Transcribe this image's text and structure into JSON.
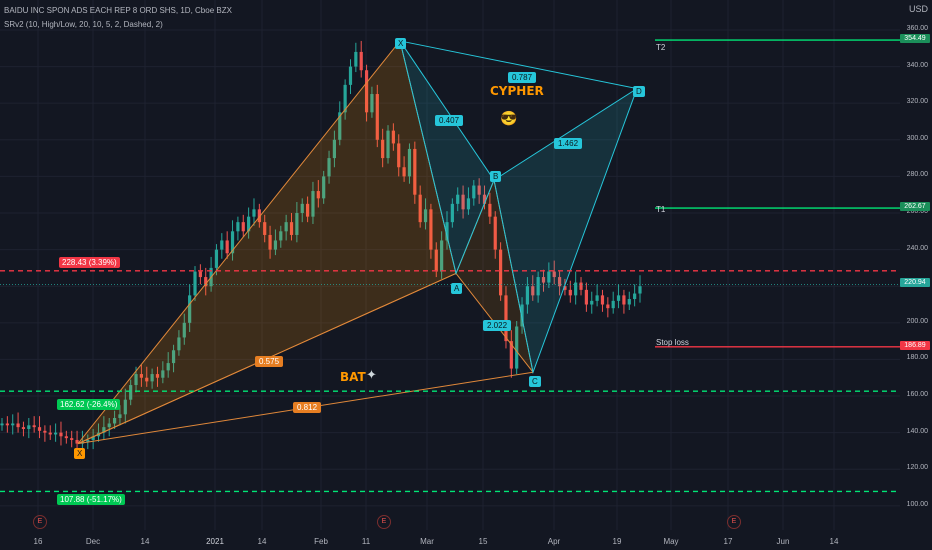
{
  "header": {
    "title": "BAIDU INC SPON ADS EACH REP 8 ORD SHS, 1D, Cboe BZX",
    "indicator": "SRv2 (10, High/Low, 20, 10, 5, 2, Dashed, 2)",
    "currency": "USD"
  },
  "colors": {
    "background": "#131722",
    "up": "#26a69a",
    "down": "#ef5350",
    "cypher": "#26c6da",
    "bat": "#ff9800",
    "green_level": "#00e676",
    "red_level": "#f23645"
  },
  "chart_data": {
    "type": "candlestick",
    "x_ticks": [
      "16",
      "Dec",
      "14",
      "2021",
      "14",
      "Feb",
      "11",
      "Mar",
      "15",
      "Apr",
      "19",
      "May",
      "17",
      "Jun",
      "14"
    ],
    "y_ticks": [
      100,
      120,
      140,
      160,
      180,
      200,
      220,
      240,
      260,
      280,
      300,
      320,
      340,
      360
    ],
    "ylim": [
      95,
      372
    ],
    "current_price": 220.94,
    "closes": [
      145,
      144,
      145,
      143,
      142,
      144,
      143,
      141,
      140,
      139,
      140,
      138,
      137,
      136,
      134,
      135,
      136,
      138,
      140,
      143,
      145,
      148,
      150,
      158,
      166,
      172,
      170,
      168,
      172,
      170,
      174,
      178,
      185,
      192,
      200,
      215,
      228,
      225,
      220,
      230,
      240,
      245,
      238,
      250,
      255,
      250,
      258,
      262,
      255,
      248,
      240,
      245,
      250,
      255,
      248,
      260,
      265,
      258,
      272,
      268,
      280,
      290,
      300,
      315,
      330,
      340,
      348,
      338,
      315,
      325,
      300,
      290,
      305,
      298,
      285,
      280,
      295,
      270,
      255,
      262,
      240,
      228,
      245,
      255,
      265,
      270,
      262,
      268,
      275,
      270,
      265,
      258,
      240,
      215,
      190,
      175,
      198,
      210,
      220,
      215,
      225,
      222,
      228,
      225,
      220,
      218,
      215,
      222,
      218,
      210,
      212,
      215,
      210,
      208,
      212,
      215,
      210,
      213,
      216,
      220
    ],
    "levels": [
      {
        "label": "228.43 (3.39%)",
        "value": 228.43,
        "style": "dashed",
        "color": "#f23645"
      },
      {
        "label": "162.62 (-26.4%)",
        "value": 162.62,
        "style": "dashed",
        "color": "#00e676"
      },
      {
        "label": "107.88 (-51.17%)",
        "value": 107.88,
        "style": "dashed",
        "color": "#00e676"
      }
    ],
    "targets": [
      {
        "label": "T2",
        "value": 354.49,
        "color": "#00e676"
      },
      {
        "label": "T1",
        "value": 262.67,
        "color": "#00e676"
      },
      {
        "label": "Stop loss",
        "value": 186.89,
        "color": "#f23645"
      }
    ],
    "patterns": [
      {
        "name": "CYPHER",
        "points": {
          "X": 354,
          "A": 227,
          "B": 278,
          "C": 173,
          "D": 328
        },
        "ratios": [
          "0.407",
          "0.787",
          "1.462",
          "2.022"
        ]
      },
      {
        "name": "BAT",
        "points": {
          "X": 134,
          "A": 354,
          "B": 227,
          "C": 278,
          "D": 173
        },
        "ratios": [
          "0.575",
          "0.812"
        ]
      }
    ],
    "point_labels": [
      "X",
      "A",
      "B",
      "C",
      "D"
    ],
    "events": [
      "E",
      "E",
      "E"
    ]
  }
}
